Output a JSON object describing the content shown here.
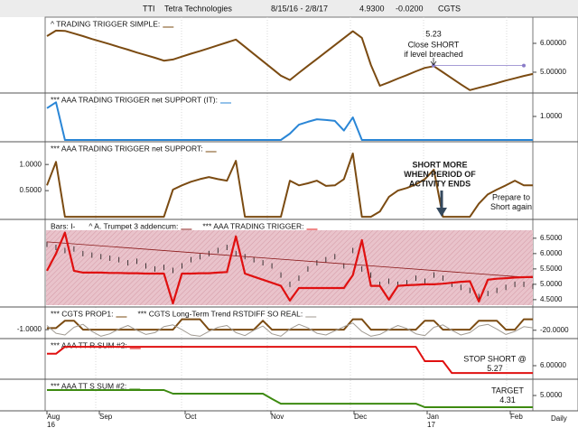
{
  "header": {
    "symbol": "TTI",
    "name": "Tetra Technologies",
    "range": "8/15/16 - 2/8/17",
    "last": "4.9300",
    "change": "-0.0200",
    "study": "CGTS"
  },
  "chart_data": [
    {
      "type": "line",
      "ticks_side": "right",
      "series": [
        {
          "name": "^ TRADING TRIGGER SIMPLE:",
          "color": "#7b4b12",
          "values": [
            6.25,
            6.44,
            6.43,
            6.34,
            6.25,
            6.15,
            6.06,
            5.97,
            5.87,
            5.78,
            5.68,
            5.59,
            5.5,
            5.4,
            5.44,
            5.54,
            5.64,
            5.73,
            5.83,
            5.93,
            6.03,
            6.13,
            5.88,
            5.63,
            5.38,
            5.13,
            4.88,
            4.73,
            4.98,
            5.22,
            5.46,
            5.7,
            5.94,
            6.18,
            6.42,
            6.19,
            5.25,
            4.53,
            4.65,
            4.78,
            4.9,
            5.03,
            5.15,
            5.21,
            5.0,
            4.79,
            4.58,
            4.38,
            4.46,
            4.54,
            4.62,
            4.71,
            4.79,
            4.87,
            4.94
          ]
        }
      ],
      "ylim": [
        4.28,
        6.875
      ],
      "yticks": [
        {
          "value": 6,
          "label": "6.00000"
        },
        {
          "value": 5,
          "label": "5.00000"
        }
      ],
      "reference_line": {
        "value": 5.23,
        "label": "5.23"
      },
      "annotations": [
        [
          "Close SHORT",
          "if level breached"
        ]
      ]
    },
    {
      "type": "line",
      "ticks_side": "right",
      "series": [
        {
          "name": "*** AAA TRADING TRIGGER net SUPPORT (IT):",
          "color": "#2a86d6",
          "values": [
            1.35,
            1.6,
            0,
            0,
            0,
            0,
            0,
            0,
            0,
            0,
            0,
            0,
            0,
            0,
            0,
            0,
            0,
            0,
            0,
            0,
            0,
            0,
            0,
            0,
            0,
            0,
            0,
            0.27,
            0.65,
            0.77,
            0.88,
            0.85,
            0.81,
            0.4,
            0.96,
            0,
            0,
            0,
            0,
            0,
            0,
            0,
            0,
            0,
            0,
            0,
            0,
            0,
            0,
            0,
            0,
            0,
            0,
            0,
            0
          ]
        }
      ],
      "ylim": [
        -0.077,
        1.92
      ],
      "yticks": [
        {
          "value": 1,
          "label": "1.0000"
        }
      ]
    },
    {
      "type": "line",
      "ticks_side": "left",
      "series": [
        {
          "name": "*** AAA TRADING TRIGGER net SUPPORT:",
          "color": "#7b4b12",
          "values": [
            0.6,
            1.05,
            0,
            0,
            0,
            0,
            0,
            0,
            0,
            0,
            0,
            0,
            0,
            0,
            0.52,
            0.6,
            0.67,
            0.72,
            0.76,
            0.72,
            0.69,
            1.07,
            0,
            0,
            0,
            0,
            0,
            0.69,
            0.6,
            0.64,
            0.69,
            0.59,
            0.6,
            0.72,
            1.21,
            0,
            0,
            0.1,
            0.38,
            0.5,
            0.55,
            0.62,
            0.72,
            0.9,
            0,
            0,
            0,
            0,
            0.25,
            0.43,
            0.52,
            0.6,
            0.69,
            0.6,
            0.6
          ]
        }
      ],
      "ylim": [
        -0.05,
        1.4
      ],
      "yticks": [
        {
          "value": 1,
          "label": "1.0000"
        },
        {
          "value": 0.5,
          "label": "0.5000"
        }
      ],
      "annotations": [
        [
          "SHORT MORE",
          "WHEN PERIOD OF",
          "ACTIVITY ENDS"
        ],
        [
          "Prepare to",
          "Short again"
        ]
      ]
    },
    {
      "type": "line",
      "ticks_side": "right",
      "background": "#e9c3cb",
      "series": [
        {
          "name": "Bars: I-",
          "color": "#111111",
          "style": "bars",
          "values": [
            6.3,
            6.2,
            6.1,
            6.15,
            6.0,
            5.95,
            5.9,
            5.85,
            5.8,
            5.7,
            5.75,
            5.6,
            5.5,
            5.55,
            5.45,
            5.6,
            5.8,
            5.9,
            6.0,
            6.1,
            6.2,
            6.0,
            5.9,
            5.8,
            5.7,
            5.6,
            5.3,
            5.0,
            5.2,
            5.5,
            5.7,
            5.8,
            5.9,
            5.6,
            6.1,
            5.5,
            5.3,
            5.0,
            5.1,
            5.0,
            5.05,
            5.2,
            5.1,
            5.3,
            5.2,
            5.0,
            4.9,
            4.8,
            4.6,
            4.7,
            4.8,
            4.9,
            5.0,
            5.0,
            4.93
          ]
        },
        {
          "name": "^ A. Trumpet 3 addencum:",
          "color": "#8b1a1a",
          "values": [
            6.38,
            5.21
          ]
        },
        {
          "name": "*** AAA TRADING TRIGGER:",
          "color": "#e01010",
          "values": [
            5.44,
            6.0,
            6.68,
            5.44,
            5.38,
            5.38,
            5.38,
            5.37,
            5.37,
            5.36,
            5.36,
            5.35,
            5.35,
            5.35,
            4.38,
            5.35,
            5.35,
            5.36,
            5.36,
            5.38,
            5.4,
            6.56,
            5.35,
            5.25,
            5.15,
            5.05,
            4.95,
            4.47,
            4.88,
            4.88,
            4.88,
            4.88,
            4.88,
            4.88,
            5.3,
            6.44,
            4.95,
            4.95,
            4.5,
            4.95,
            4.97,
            4.98,
            5.0,
            5.0,
            5.02,
            5.05,
            5.08,
            5.1,
            4.44,
            5.15,
            5.18,
            5.2,
            5.22,
            5.23,
            5.24
          ]
        }
      ],
      "ylim": [
        4.32,
        6.76
      ],
      "yticks": [
        {
          "value": 6.5,
          "label": "6.5000"
        },
        {
          "value": 6,
          "label": "6.0000"
        },
        {
          "value": 5.5,
          "label": "5.5000"
        },
        {
          "value": 5,
          "label": "5.0000"
        },
        {
          "value": 4.5,
          "label": "4.5000"
        }
      ]
    },
    {
      "type": "line",
      "ticks_side": "left",
      "series": [
        {
          "name": "*** CGTS PROP1:",
          "color": "#7b4b12",
          "values": [
            -0.9,
            -0.9,
            -0.4,
            -0.4,
            -1,
            -1,
            -1,
            -1,
            -1,
            -1,
            -1,
            -1,
            -1,
            -1,
            -1,
            -0.3,
            -0.3,
            -0.3,
            -1,
            -1,
            -1,
            -1,
            -1,
            -1,
            -0.4,
            -1,
            -1,
            -1,
            -1,
            -1,
            -1,
            -1,
            -1,
            -1,
            -0.3,
            -0.3,
            -1,
            -1,
            -1,
            -1,
            -1,
            -1,
            -0.4,
            -0.4,
            -1,
            -1,
            -1,
            -1,
            -0.4,
            -0.4,
            -0.4,
            -1,
            -1,
            -0.3,
            -0.3
          ]
        },
        {
          "name": "*** CGTS Long-Term Trend RSTDIFF SO REAL:",
          "color": "#a09a92",
          "axis": "y2",
          "values": [
            -12,
            -25,
            -28,
            -15,
            -10,
            -22,
            -30,
            -26,
            -18,
            -12,
            -20,
            -27,
            -24,
            -14,
            -11,
            -19,
            -28,
            -30,
            -22,
            -15,
            -12,
            -24,
            -29,
            -20,
            -13,
            -26,
            -30,
            -18,
            -10,
            -16,
            -25,
            -28,
            -21,
            -14,
            -8,
            -22,
            -30,
            -27,
            -19,
            -12,
            -17,
            -26,
            -29,
            -15,
            -11,
            -20,
            -28,
            -24,
            -13,
            -10,
            -18,
            -27,
            -22,
            -14,
            -16
          ]
        }
      ],
      "ylim": [
        -1.6,
        0.4
      ],
      "yticks": [
        {
          "value": -1,
          "label": "-1.0000"
        }
      ],
      "y2lim": [
        -34,
        16
      ],
      "y2ticks": [
        {
          "value": -20,
          "label": "-20.0000"
        }
      ]
    },
    {
      "type": "line",
      "ticks_side": "right",
      "series": [
        {
          "name": "*** AAA TT R SUM #2:",
          "color": "#e01010",
          "values": [
            7.2,
            7.2,
            7.9,
            7.9,
            7.9,
            7.9,
            7.9,
            7.9,
            7.9,
            7.9,
            7.9,
            7.9,
            7.9,
            7.9,
            7.9,
            7.9,
            7.9,
            7.9,
            7.9,
            7.9,
            7.9,
            7.9,
            7.9,
            7.9,
            7.9,
            7.9,
            7.9,
            7.9,
            7.9,
            7.9,
            7.9,
            7.9,
            7.9,
            7.9,
            7.9,
            7.9,
            7.9,
            7.9,
            7.9,
            7.9,
            7.9,
            7.9,
            6.45,
            6.45,
            6.45,
            5.27,
            5.27,
            5.27,
            5.27,
            5.27,
            5.27,
            5.27,
            5.27,
            5.27,
            5.27
          ]
        }
      ],
      "ylim": [
        4.64,
        8.45
      ],
      "yticks": [
        {
          "value": 6,
          "label": "6.00000"
        }
      ],
      "annotations": [
        [
          "STOP SHORT @",
          "5.27"
        ]
      ]
    },
    {
      "type": "line",
      "ticks_side": "right",
      "series": [
        {
          "name": "*** AAA TT S SUM #2:",
          "color": "#3d8a10",
          "values": [
            5.32,
            5.32,
            5.32,
            5.32,
            5.32,
            5.32,
            5.32,
            5.32,
            5.32,
            5.32,
            5.32,
            5.32,
            5.32,
            5.32,
            5.11,
            5.11,
            5.11,
            5.11,
            5.11,
            5.11,
            5.11,
            5.11,
            5.11,
            5.11,
            5.11,
            4.8,
            4.52,
            4.52,
            4.52,
            4.52,
            4.52,
            4.52,
            4.52,
            4.52,
            4.52,
            4.52,
            4.52,
            4.52,
            4.52,
            4.52,
            4.52,
            4.52,
            4.31,
            4.31,
            4.31,
            4.31,
            4.31,
            4.31,
            4.31,
            4.31,
            4.31,
            4.31,
            4.31,
            4.31,
            4.31
          ]
        }
      ],
      "ylim": [
        4.1,
        5.85
      ],
      "yticks": [
        {
          "value": 5,
          "label": "5.0000"
        }
      ],
      "annotations": [
        [
          "TARGET",
          "4.31"
        ]
      ]
    }
  ],
  "time_axis": {
    "months": [
      "Aug",
      "Sep",
      "Oct",
      "Nov",
      "Dec",
      "Jan",
      "Feb"
    ],
    "years": [
      "16",
      "17"
    ],
    "period": "Daily"
  }
}
